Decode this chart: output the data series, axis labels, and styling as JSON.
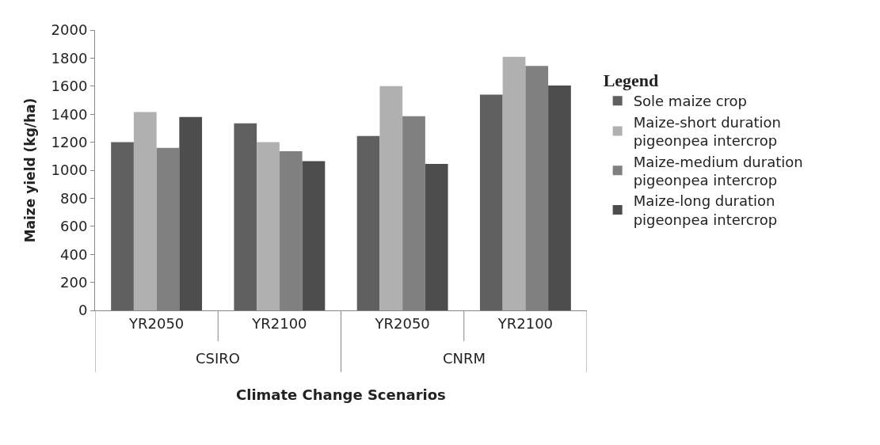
{
  "chart_data": {
    "type": "bar",
    "xlabel": "Climate Change Scenarios",
    "ylabel": "Maize yield (kg/ha)",
    "legend_title": "Legend",
    "categories": [
      "YR2050",
      "YR2100",
      "YR2050",
      "YR2100"
    ],
    "annotations": [
      "CSIRO",
      "CNRM"
    ],
    "series": [
      {
        "name": "Sole maize crop",
        "color": "#606060",
        "values": [
          1200,
          1335,
          1245,
          1540
        ]
      },
      {
        "name": "Maize-short duration pigeonpea intercrop",
        "color": "#b0b0b0",
        "values": [
          1415,
          1200,
          1600,
          1810
        ]
      },
      {
        "name": "Maize-medium duration pigeonpea intercrop",
        "color": "#808080",
        "values": [
          1160,
          1135,
          1385,
          1745
        ]
      },
      {
        "name": "Maize-long duration pigeonpea intercrop",
        "color": "#4d4d4d",
        "values": [
          1380,
          1065,
          1045,
          1605
        ]
      }
    ],
    "ylim": [
      0,
      2000
    ],
    "yticks": [
      0,
      200,
      400,
      600,
      800,
      1000,
      1200,
      1400,
      1600,
      1800,
      2000
    ],
    "legend": "right"
  }
}
